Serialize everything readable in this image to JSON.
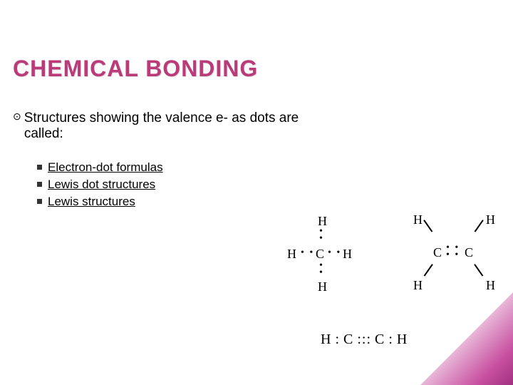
{
  "title": "CHEMICAL BONDING",
  "title_color": "#bb3a7a",
  "body": {
    "line1": "Structures showing the valence e- as dots are",
    "line2": "called:"
  },
  "sublist": [
    "Electron-dot formulas",
    "Lewis dot structures",
    "Lewis structures"
  ],
  "diagrams": {
    "methane": {
      "atoms": {
        "center": "C",
        "top": "H",
        "bottom": "H",
        "left": "H",
        "right": "H"
      },
      "bond_dots_each": 2
    },
    "ethene": {
      "atoms": {
        "c1": "C",
        "c2": "C",
        "h_tl": "H",
        "h_tr": "H",
        "h_bl": "H",
        "h_br": "H"
      },
      "cc_dot_pairs": 2
    },
    "ethyne_text": "H : C ::: C : H"
  },
  "style": {
    "background_color": "#ffffff",
    "title_fontsize": 32,
    "body_fontsize": 19,
    "sublist_fontsize": 17,
    "corner_gradient_from": "#ffffff",
    "corner_gradient_to": "#a03080",
    "bullet_main": "⊙",
    "bullet_sub_shape": "square"
  }
}
